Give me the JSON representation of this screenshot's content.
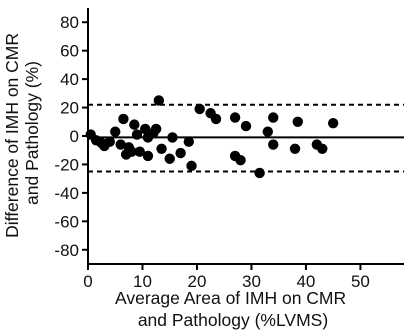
{
  "chart_data": {
    "type": "scatter",
    "title": "",
    "xlabel_lines": [
      "Average Area of IMH on CMR",
      "and Pathology (%LVMS)"
    ],
    "ylabel_lines": [
      "Difference of IMH on CMR",
      "and Pathology (%)"
    ],
    "xlim": [
      0,
      58
    ],
    "ylim": [
      -90,
      90
    ],
    "xticks": [
      0,
      10,
      20,
      30,
      40,
      50
    ],
    "yticks": [
      80,
      60,
      40,
      20,
      0,
      -20,
      -40,
      -60,
      -80
    ],
    "grid": false,
    "legend": "none",
    "reference_lines": [
      {
        "y": 22,
        "style": "dashed"
      },
      {
        "y": -1,
        "style": "solid"
      },
      {
        "y": -25,
        "style": "dashed"
      }
    ],
    "point_color": "#000000",
    "points": [
      {
        "x": 0.5,
        "y": 1
      },
      {
        "x": 1.5,
        "y": -3
      },
      {
        "x": 2.5,
        "y": -5
      },
      {
        "x": 3,
        "y": -7
      },
      {
        "x": 4,
        "y": -4
      },
      {
        "x": 5,
        "y": 3
      },
      {
        "x": 6,
        "y": -6
      },
      {
        "x": 6.5,
        "y": 12
      },
      {
        "x": 7,
        "y": -13
      },
      {
        "x": 7.5,
        "y": -8
      },
      {
        "x": 8,
        "y": -11
      },
      {
        "x": 8.5,
        "y": 8
      },
      {
        "x": 9,
        "y": 1
      },
      {
        "x": 9.5,
        "y": -11
      },
      {
        "x": 10.5,
        "y": 5
      },
      {
        "x": 11,
        "y": -1
      },
      {
        "x": 11,
        "y": -14
      },
      {
        "x": 12,
        "y": 2
      },
      {
        "x": 12.5,
        "y": 5
      },
      {
        "x": 13,
        "y": 25
      },
      {
        "x": 13.5,
        "y": -9
      },
      {
        "x": 15,
        "y": -16
      },
      {
        "x": 15.5,
        "y": -1
      },
      {
        "x": 17,
        "y": -12
      },
      {
        "x": 18.5,
        "y": -4
      },
      {
        "x": 19,
        "y": -21
      },
      {
        "x": 20.5,
        "y": 19
      },
      {
        "x": 22.5,
        "y": 16
      },
      {
        "x": 23.5,
        "y": 12
      },
      {
        "x": 27,
        "y": 13
      },
      {
        "x": 27,
        "y": -14
      },
      {
        "x": 28,
        "y": -17
      },
      {
        "x": 29,
        "y": 7
      },
      {
        "x": 31.5,
        "y": -26
      },
      {
        "x": 33,
        "y": 3
      },
      {
        "x": 34,
        "y": 13
      },
      {
        "x": 34,
        "y": -6
      },
      {
        "x": 38,
        "y": -9
      },
      {
        "x": 38.5,
        "y": 10
      },
      {
        "x": 42,
        "y": -6
      },
      {
        "x": 43,
        "y": -9
      },
      {
        "x": 45,
        "y": 9
      }
    ]
  }
}
